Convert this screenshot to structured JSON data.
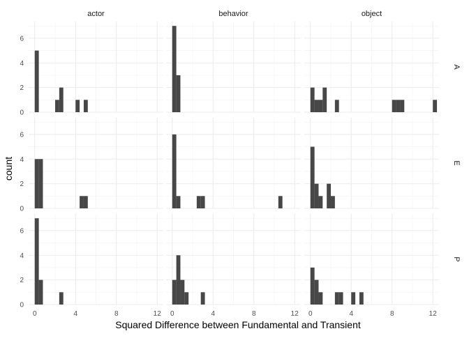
{
  "chart_data": {
    "type": "bar",
    "subtype": "faceted-histogram",
    "xlabel": "Squared Difference between Fundamental and Transient",
    "ylabel": "count",
    "xlim": [
      -0.6,
      12.6
    ],
    "ylim": [
      0,
      7.35
    ],
    "x_ticks": [
      0,
      4,
      8,
      12
    ],
    "y_ticks": [
      0,
      2,
      4,
      6
    ],
    "bin_width": 0.4,
    "grid": true,
    "bar_color": "#474747",
    "columns": [
      "actor",
      "behavior",
      "object"
    ],
    "rows": [
      "A",
      "E",
      "P"
    ],
    "panels": [
      {
        "col": "actor",
        "row": "A",
        "bins": [
          [
            0,
            5
          ],
          [
            2,
            1
          ],
          [
            2.4,
            2
          ],
          [
            4,
            1
          ],
          [
            4.8,
            1
          ]
        ]
      },
      {
        "col": "behavior",
        "row": "A",
        "bins": [
          [
            0,
            7
          ],
          [
            0.4,
            3
          ]
        ]
      },
      {
        "col": "object",
        "row": "A",
        "bins": [
          [
            0,
            2
          ],
          [
            0.4,
            1
          ],
          [
            0.8,
            1
          ],
          [
            1.2,
            2
          ],
          [
            2.4,
            1
          ],
          [
            8,
            1
          ],
          [
            8.4,
            1
          ],
          [
            8.8,
            1
          ],
          [
            12,
            1
          ]
        ]
      },
      {
        "col": "actor",
        "row": "E",
        "bins": [
          [
            0,
            4
          ],
          [
            0.4,
            4
          ],
          [
            4.4,
            1
          ],
          [
            4.8,
            1
          ]
        ]
      },
      {
        "col": "behavior",
        "row": "E",
        "bins": [
          [
            0,
            6
          ],
          [
            0.4,
            1
          ],
          [
            2.4,
            1
          ],
          [
            2.8,
            1
          ],
          [
            10.4,
            1
          ]
        ]
      },
      {
        "col": "object",
        "row": "E",
        "bins": [
          [
            0,
            5
          ],
          [
            0.4,
            2
          ],
          [
            0.8,
            1
          ],
          [
            1.6,
            2
          ],
          [
            2,
            1
          ]
        ]
      },
      {
        "col": "actor",
        "row": "P",
        "bins": [
          [
            0,
            7
          ],
          [
            0.4,
            2
          ],
          [
            2.4,
            1
          ]
        ]
      },
      {
        "col": "behavior",
        "row": "P",
        "bins": [
          [
            0,
            2
          ],
          [
            0.4,
            4
          ],
          [
            0.8,
            2
          ],
          [
            1.2,
            1
          ],
          [
            2.8,
            1
          ]
        ]
      },
      {
        "col": "object",
        "row": "P",
        "bins": [
          [
            0,
            3
          ],
          [
            0.4,
            2
          ],
          [
            0.8,
            1
          ],
          [
            2.4,
            1
          ],
          [
            2.8,
            1
          ],
          [
            4,
            1
          ],
          [
            4.8,
            1
          ]
        ]
      }
    ]
  }
}
